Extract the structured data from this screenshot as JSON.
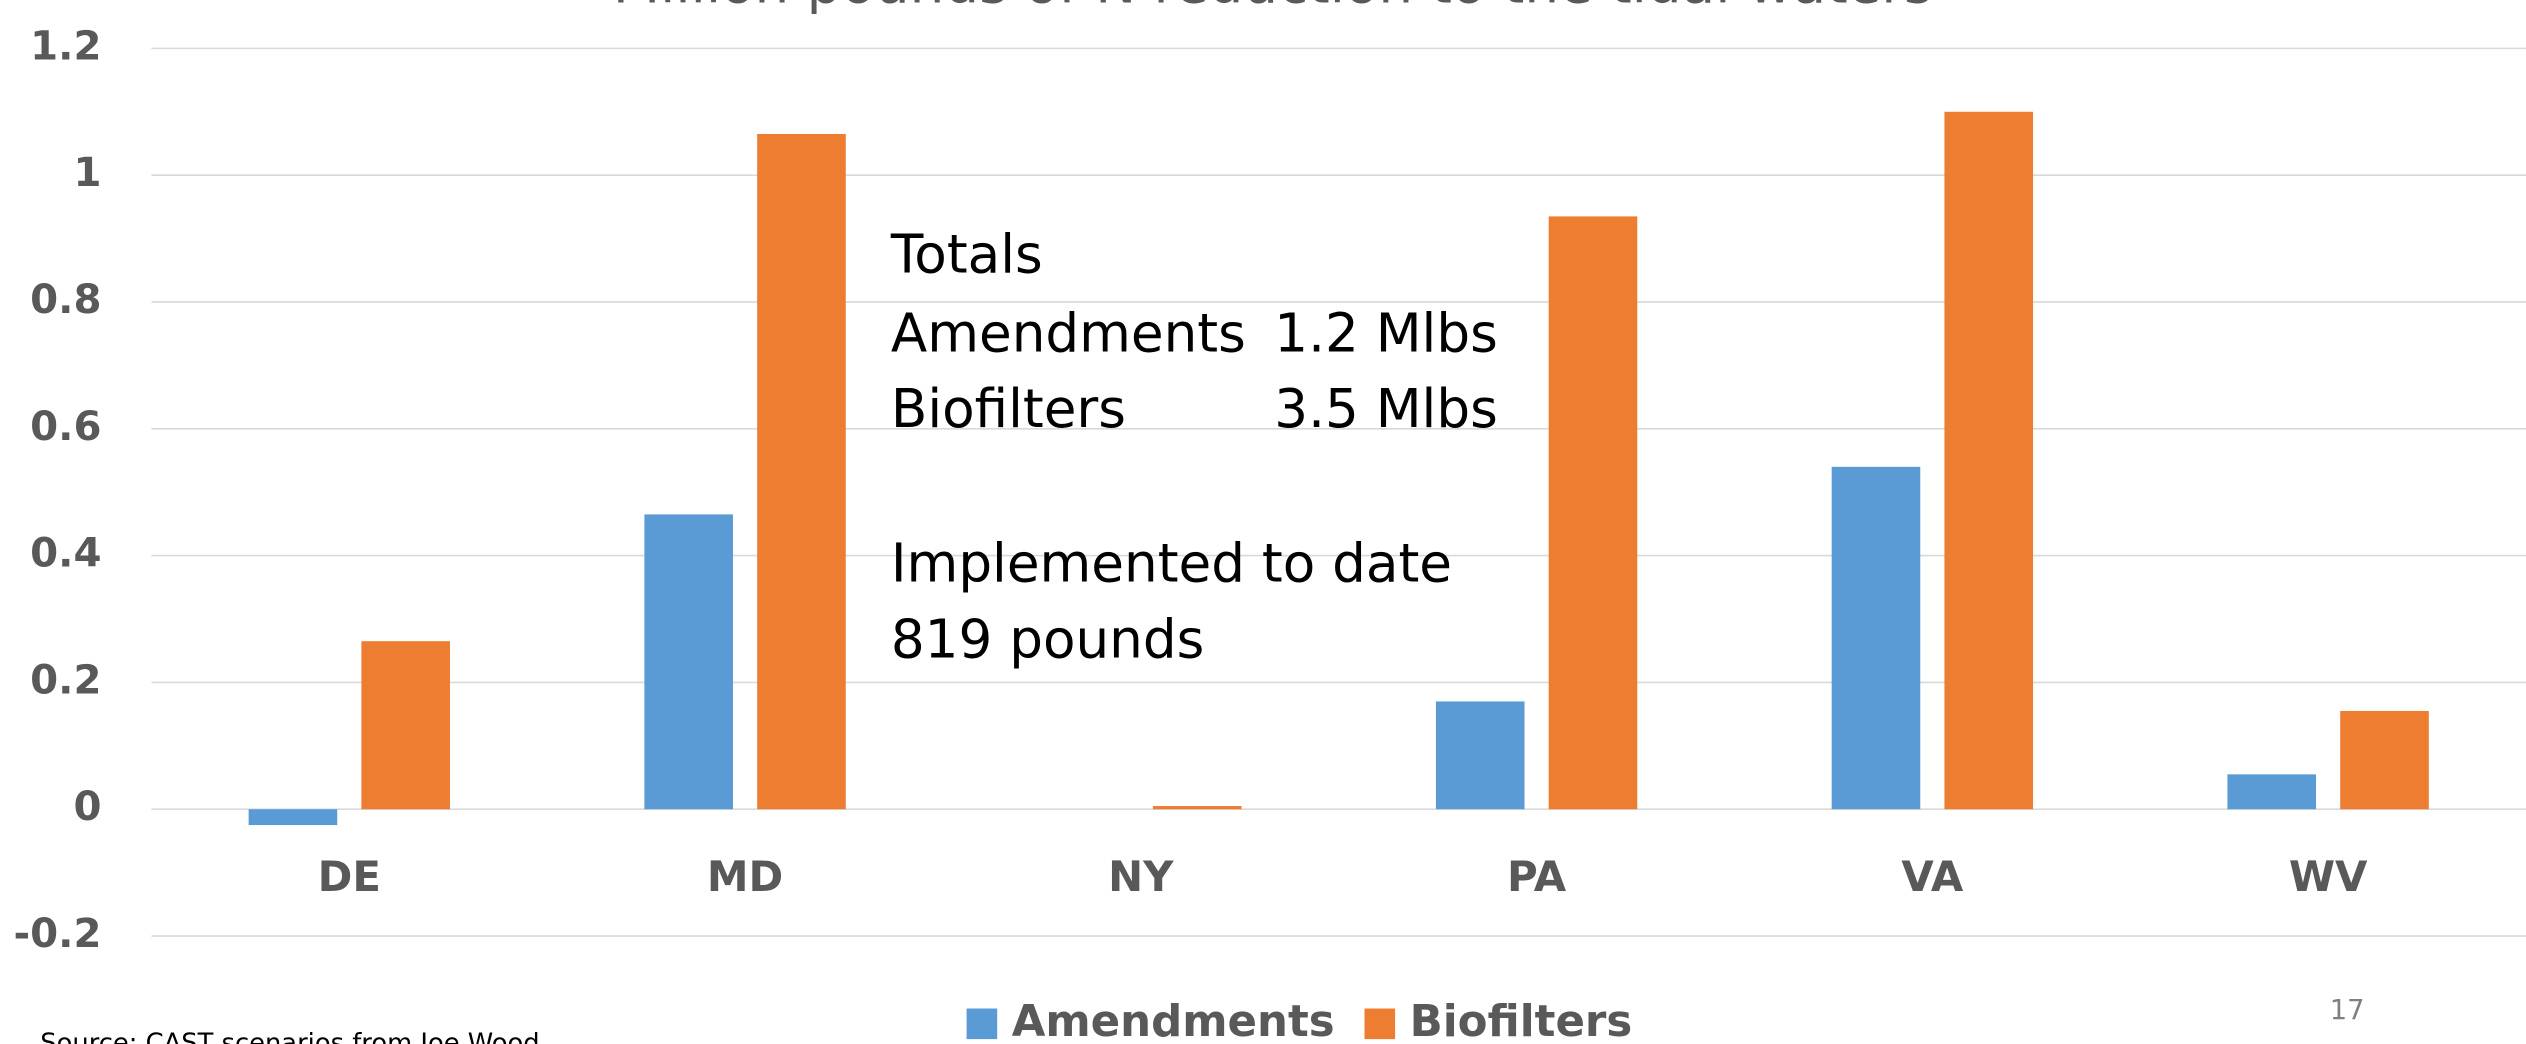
{
  "chart_data": {
    "type": "bar",
    "title": "Million pounds of N reduction to the tidal waters",
    "categories": [
      "DE",
      "MD",
      "NY",
      "PA",
      "VA",
      "WV"
    ],
    "series": [
      {
        "name": "Amendments",
        "color": "#5b9bd5",
        "values": [
          -0.025,
          0.465,
          0,
          0.17,
          0.54,
          0.055
        ]
      },
      {
        "name": "Biofilters",
        "color": "#ed7d31",
        "values": [
          0.265,
          1.065,
          0.005,
          0.935,
          1.1,
          0.155
        ]
      }
    ],
    "ylim": [
      -0.2,
      1.2
    ],
    "yticks": [
      -0.2,
      0,
      0.2,
      0.4,
      0.6,
      0.8,
      1,
      1.2
    ],
    "grid": true,
    "legend": "bottom",
    "annotations": [
      "Totals",
      "Amendments",
      "1.2 Mlbs",
      "Biofilters",
      "3.5 Mlbs",
      "Implemented to date",
      "819 pounds"
    ],
    "source": "Source: CAST scenarios from Joe Wood",
    "page_number": "17"
  }
}
